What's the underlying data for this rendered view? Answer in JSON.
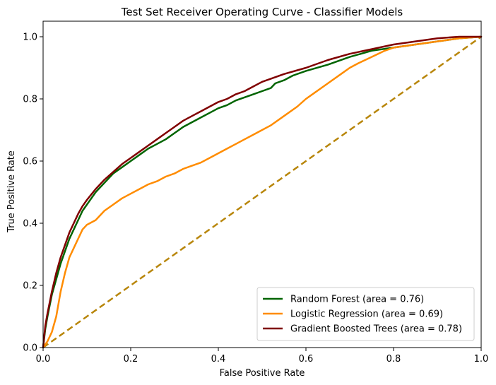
{
  "chart_data": {
    "type": "line",
    "title": "Test Set Receiver Operating Curve - Classifier Models",
    "xlabel": "False Positive Rate",
    "ylabel": "True Positive Rate",
    "xlim": [
      0.0,
      1.0
    ],
    "ylim": [
      0.0,
      1.05
    ],
    "xticks": [
      "0.0",
      "0.2",
      "0.4",
      "0.6",
      "0.8",
      "1.0"
    ],
    "yticks": [
      "0.0",
      "0.2",
      "0.4",
      "0.6",
      "0.8",
      "1.0"
    ],
    "grid": false,
    "legend_position": "bottom-right",
    "series": [
      {
        "name": "Random Forest (area = 0.76)",
        "color": "#006400",
        "x": [
          0,
          0.005,
          0.01,
          0.02,
          0.03,
          0.04,
          0.05,
          0.06,
          0.07,
          0.08,
          0.09,
          0.1,
          0.12,
          0.14,
          0.16,
          0.18,
          0.2,
          0.22,
          0.24,
          0.26,
          0.28,
          0.3,
          0.32,
          0.34,
          0.36,
          0.38,
          0.4,
          0.42,
          0.44,
          0.46,
          0.48,
          0.5,
          0.52,
          0.53,
          0.55,
          0.57,
          0.6,
          0.65,
          0.7,
          0.75,
          0.8,
          0.85,
          0.9,
          0.95,
          1.0
        ],
        "y": [
          0,
          0.06,
          0.1,
          0.17,
          0.22,
          0.27,
          0.31,
          0.35,
          0.38,
          0.41,
          0.44,
          0.46,
          0.5,
          0.53,
          0.56,
          0.58,
          0.6,
          0.62,
          0.64,
          0.655,
          0.67,
          0.69,
          0.71,
          0.725,
          0.74,
          0.755,
          0.77,
          0.78,
          0.795,
          0.805,
          0.815,
          0.825,
          0.835,
          0.85,
          0.86,
          0.875,
          0.89,
          0.91,
          0.935,
          0.955,
          0.965,
          0.975,
          0.985,
          0.995,
          1.0
        ]
      },
      {
        "name": "Logistic Regression (area = 0.69)",
        "color": "#ff8c00",
        "x": [
          0,
          0.01,
          0.02,
          0.03,
          0.04,
          0.05,
          0.06,
          0.07,
          0.08,
          0.09,
          0.1,
          0.12,
          0.14,
          0.16,
          0.18,
          0.2,
          0.22,
          0.24,
          0.26,
          0.28,
          0.3,
          0.32,
          0.34,
          0.36,
          0.38,
          0.4,
          0.42,
          0.44,
          0.46,
          0.48,
          0.5,
          0.52,
          0.55,
          0.58,
          0.6,
          0.62,
          0.65,
          0.68,
          0.7,
          0.72,
          0.75,
          0.78,
          0.8,
          0.85,
          0.9,
          0.95,
          1.0
        ],
        "y": [
          0,
          0.02,
          0.05,
          0.1,
          0.18,
          0.24,
          0.29,
          0.32,
          0.35,
          0.38,
          0.395,
          0.41,
          0.44,
          0.46,
          0.48,
          0.495,
          0.51,
          0.525,
          0.535,
          0.55,
          0.56,
          0.575,
          0.585,
          0.595,
          0.61,
          0.625,
          0.64,
          0.655,
          0.67,
          0.685,
          0.7,
          0.715,
          0.745,
          0.775,
          0.8,
          0.82,
          0.85,
          0.88,
          0.9,
          0.915,
          0.935,
          0.955,
          0.965,
          0.975,
          0.985,
          0.995,
          1.0
        ]
      },
      {
        "name": "Gradient Boosted Trees (area = 0.78)",
        "color": "#800000",
        "x": [
          0,
          0.005,
          0.01,
          0.02,
          0.03,
          0.04,
          0.05,
          0.06,
          0.07,
          0.08,
          0.09,
          0.1,
          0.12,
          0.14,
          0.16,
          0.18,
          0.2,
          0.22,
          0.24,
          0.26,
          0.28,
          0.3,
          0.32,
          0.34,
          0.36,
          0.38,
          0.4,
          0.42,
          0.44,
          0.46,
          0.48,
          0.5,
          0.52,
          0.55,
          0.6,
          0.65,
          0.7,
          0.75,
          0.8,
          0.85,
          0.9,
          0.95,
          1.0
        ],
        "y": [
          0,
          0.07,
          0.11,
          0.18,
          0.24,
          0.29,
          0.33,
          0.37,
          0.4,
          0.43,
          0.455,
          0.475,
          0.51,
          0.54,
          0.565,
          0.59,
          0.61,
          0.63,
          0.65,
          0.67,
          0.69,
          0.71,
          0.73,
          0.745,
          0.76,
          0.775,
          0.79,
          0.8,
          0.815,
          0.825,
          0.84,
          0.855,
          0.865,
          0.88,
          0.9,
          0.925,
          0.945,
          0.96,
          0.975,
          0.985,
          0.995,
          1.0,
          1.0
        ]
      }
    ],
    "reference_line": {
      "color": "#b8860b",
      "dash": "dashed",
      "x": [
        0,
        1.0
      ],
      "y": [
        0,
        1.0
      ]
    }
  }
}
